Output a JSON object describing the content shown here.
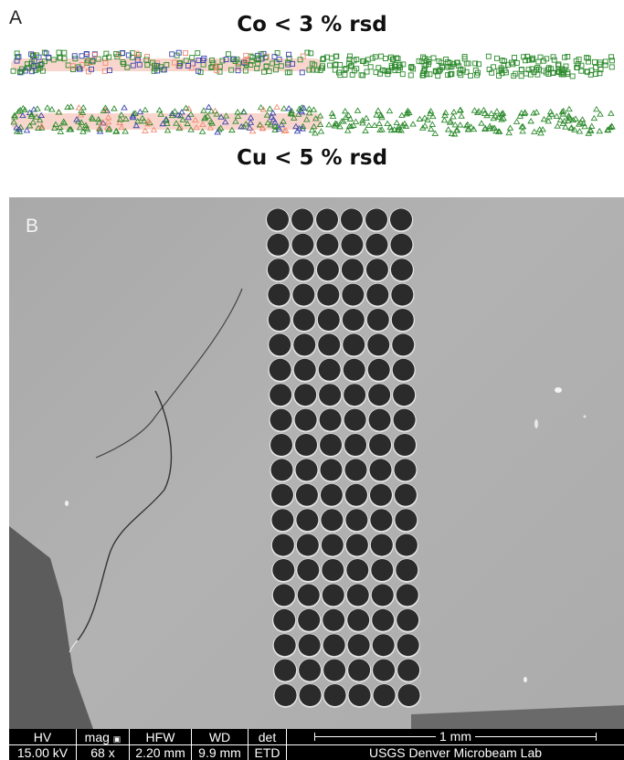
{
  "panel_a": {
    "letter": "A",
    "title_top": "Co < 3 % rsd",
    "title_bottom": "Cu < 5 % rsd",
    "colors": {
      "green": "#2e8b2e",
      "blue": "#3b46b0",
      "red": "#ee8a70"
    }
  },
  "panel_b": {
    "letter": "B",
    "array": {
      "columns": 6,
      "rows": 20
    },
    "info_bar": {
      "hv_label": "HV",
      "hv_value": "15.00 kV",
      "mag_label": "mag",
      "mag_value": "68 x",
      "hfw_label": "HFW",
      "hfw_value": "2.20 mm",
      "wd_label": "WD",
      "wd_value": "9.9 mm",
      "det_label": "det",
      "det_value": "ETD",
      "scale_label": "1 mm",
      "lab_name": "USGS Denver Microbeam Lab"
    }
  }
}
